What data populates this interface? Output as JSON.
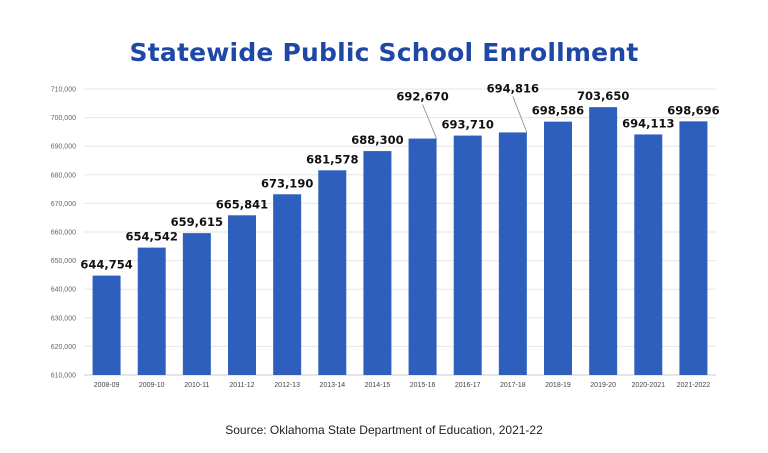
{
  "chart_data": {
    "type": "bar",
    "title": "Statewide Public School Enrollment",
    "source": "Source: Oklahoma State Department of Education, 2021-22",
    "categories": [
      "2008-09",
      "2009-10",
      "2010-11",
      "2011-12",
      "2012-13",
      "2013-14",
      "2014-15",
      "2015-16",
      "2016-17",
      "2017-18",
      "2018-19",
      "2019-20",
      "2020-2021",
      "2021-2022"
    ],
    "values": [
      644754,
      654542,
      659615,
      665841,
      673190,
      681578,
      688300,
      692670,
      693710,
      694816,
      698586,
      703650,
      694113,
      698696
    ],
    "data_labels": [
      "644,754",
      "654,542",
      "659,615",
      "665,841",
      "673,190",
      "681,578",
      "688,300",
      "692,670",
      "693,710",
      "694,816",
      "698,586",
      "703,650",
      "694,113",
      "698,696"
    ],
    "yticks": [
      610000,
      620000,
      630000,
      640000,
      650000,
      660000,
      670000,
      680000,
      690000,
      700000,
      710000
    ],
    "ytick_labels": [
      "610,000",
      "620,000",
      "630,000",
      "640,000",
      "650,000",
      "660,000",
      "670,000",
      "680,000",
      "690,000",
      "700,000",
      "710,000"
    ],
    "ylim": [
      610000,
      710000
    ],
    "xlabel": "",
    "ylabel": "",
    "grid": true,
    "legend": "none",
    "bar_color": "#2f5fbd",
    "title_color": "#1f47a6"
  }
}
